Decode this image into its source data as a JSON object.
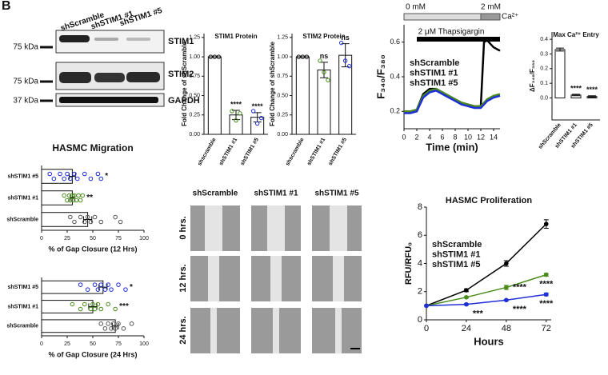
{
  "panel_label": "B",
  "blot": {
    "lanes": [
      "shScramble",
      "shSTIM1 #1",
      "shSTIM1 #5"
    ],
    "markers": [
      "75 kDa",
      "75 kDa",
      "37 kDa"
    ],
    "proteins": [
      "STIM1",
      "STIM2",
      "GAPDH"
    ]
  },
  "images": {
    "columns": [
      "shScramble",
      "shSTIM1 #1",
      "shSTIM1 #5"
    ],
    "rows": [
      "0 hrs.",
      "12 hrs.",
      "24 hrs."
    ]
  },
  "chart_data": [
    {
      "type": "bar",
      "title": "STIM1 Protein",
      "ylabel": "Fold Change of shScramble",
      "categories": [
        "shscramble",
        "shSTIM1 #1",
        "shSTIM1 #5"
      ],
      "values": [
        1,
        0.25,
        0.22
      ],
      "errors": [
        0,
        0.06,
        0.06
      ],
      "points": [
        [
          1,
          1,
          1
        ],
        [
          0.3,
          0.18,
          0.27
        ],
        [
          0.3,
          0.14,
          0.21
        ]
      ],
      "colors": [
        "#000000",
        "#4a8c1c",
        "#1f2fd6"
      ],
      "annotations": [
        null,
        "****",
        "****"
      ],
      "ylim": [
        0,
        1.3
      ],
      "yticks": [
        {
          "value": 0,
          "label": "0.00"
        },
        {
          "value": 0.25,
          "label": "0.25"
        },
        {
          "value": 0.5,
          "label": "0.50"
        },
        {
          "value": 0.75,
          "label": "0.75"
        },
        {
          "value": 1,
          "label": "1.00"
        },
        {
          "value": 1.25,
          "label": "1.25"
        }
      ]
    },
    {
      "type": "bar",
      "title": "STIM2 Protein",
      "ylabel": "Fold Change of shScramble",
      "categories": [
        "shscramble",
        "shSTIM1 #1",
        "shSTIM1 #5"
      ],
      "values": [
        1,
        0.83,
        1.02
      ],
      "errors": [
        0,
        0.1,
        0.15
      ],
      "points": [
        [
          1,
          1,
          1
        ],
        [
          0.95,
          0.8,
          0.7
        ],
        [
          1.18,
          0.95,
          0.88
        ]
      ],
      "colors": [
        "#000000",
        "#4a8c1c",
        "#1f2fd6"
      ],
      "annotations": [
        null,
        "ns",
        "ns"
      ],
      "ylim": [
        0,
        1.3
      ],
      "yticks": [
        {
          "value": 0,
          "label": "0.00"
        },
        {
          "value": 0.25,
          "label": "0.25"
        },
        {
          "value": 0.5,
          "label": "0.50"
        },
        {
          "value": 0.75,
          "label": "0.75"
        },
        {
          "value": 1,
          "label": "1.00"
        },
        {
          "value": 1.25,
          "label": "1.25"
        }
      ]
    },
    {
      "type": "line",
      "xlabel": "Time (min)",
      "ylabel": "F₃₄₀/F₃₈₀",
      "legend": "upper left",
      "protocol": {
        "before": "0 mM",
        "after": "2 mM",
        "ion": "Ca²⁺",
        "drug": "2 μM Thapsigargin"
      },
      "x": [
        0,
        1,
        2,
        3,
        4,
        5,
        6,
        7,
        8,
        9,
        10,
        11,
        12,
        12.5,
        13,
        14,
        15
      ],
      "series": [
        {
          "name": "shScramble",
          "color": "#000000",
          "values": [
            0.2,
            0.2,
            0.21,
            0.3,
            0.33,
            0.33,
            0.31,
            0.29,
            0.27,
            0.25,
            0.24,
            0.23,
            0.23,
            0.6,
            0.61,
            0.57,
            0.55
          ]
        },
        {
          "name": "shSTIM1 #1",
          "color": "#4a8c1c",
          "values": [
            0.2,
            0.2,
            0.21,
            0.29,
            0.32,
            0.33,
            0.31,
            0.29,
            0.27,
            0.25,
            0.24,
            0.23,
            0.23,
            0.25,
            0.27,
            0.29,
            0.3
          ]
        },
        {
          "name": "shSTIM1 #5",
          "color": "#1f2fd6",
          "values": [
            0.19,
            0.19,
            0.2,
            0.28,
            0.31,
            0.32,
            0.3,
            0.28,
            0.26,
            0.24,
            0.23,
            0.22,
            0.22,
            0.24,
            0.26,
            0.28,
            0.29
          ]
        }
      ],
      "xlim": [
        0,
        15
      ],
      "ylim": [
        0.1,
        0.7
      ],
      "xticks": [
        0,
        2,
        4,
        6,
        8,
        10,
        12,
        14
      ],
      "yticks": [
        0.2,
        0.4,
        0.6
      ]
    },
    {
      "type": "bar",
      "title": "Max Ca²⁺ Entry",
      "ylabel": "ΔF₃₄₀/F₃₈₀",
      "categories": [
        "shScramble",
        "shSTIM1 #1",
        "shSTIM1 #5"
      ],
      "values": [
        0.33,
        0.02,
        0.01
      ],
      "errors": [
        0.01,
        0.005,
        0.005
      ],
      "colors": [
        "#000000",
        "#4a8c1c",
        "#1f2fd6"
      ],
      "annotations": [
        null,
        "****",
        "****"
      ],
      "ylim": [
        -0.15,
        0.45
      ],
      "yticks": [
        {
          "value": 0,
          "label": "0.0"
        },
        {
          "value": 0.1,
          "label": "0.1"
        },
        {
          "value": 0.2,
          "label": "0.2"
        },
        {
          "value": 0.3,
          "label": "0.3"
        },
        {
          "value": 0.4,
          "label": "0.4"
        }
      ]
    },
    {
      "type": "barh",
      "title": "HASMC Migration",
      "xlabel": "% of Gap Closure (12 Hrs)",
      "categories": [
        "shSTIM1 #5",
        "shSTIM1 #1",
        "shScramble"
      ],
      "values": [
        30,
        30,
        45
      ],
      "errors": [
        3,
        2,
        4
      ],
      "colors": [
        "#1f2fd6",
        "#4a8c1c",
        "#555555"
      ],
      "annotations": [
        "*",
        "**",
        null
      ],
      "points": [
        [
          8,
          12,
          18,
          22,
          25,
          28,
          32,
          35,
          42,
          48,
          55,
          58
        ],
        [
          22,
          25,
          27,
          28,
          30,
          31,
          32,
          34,
          36,
          38,
          40
        ],
        [
          28,
          32,
          38,
          42,
          45,
          48,
          52,
          58,
          72,
          77
        ]
      ],
      "xlim": [
        0,
        100
      ],
      "xticks": [
        0,
        25,
        50,
        75,
        100
      ]
    },
    {
      "type": "barh",
      "xlabel": "% of Gap Closure (24 Hrs)",
      "categories": [
        "shSTIM1 #5",
        "shSTIM1 #1",
        "shScramble"
      ],
      "values": [
        60,
        50,
        72
      ],
      "errors": [
        4,
        4,
        3
      ],
      "colors": [
        "#1f2fd6",
        "#4a8c1c",
        "#555555"
      ],
      "annotations": [
        "*",
        "***",
        null
      ],
      "points": [
        [
          38,
          45,
          52,
          55,
          58,
          62,
          65,
          68,
          75,
          82
        ],
        [
          30,
          38,
          42,
          48,
          50,
          52,
          55,
          58,
          65,
          72
        ],
        [
          58,
          62,
          65,
          68,
          70,
          72,
          75,
          80,
          88
        ]
      ],
      "xlim": [
        0,
        100
      ],
      "xticks": [
        0,
        25,
        50,
        75,
        100
      ]
    },
    {
      "type": "line",
      "title": "HASMC Proliferation",
      "xlabel": "Hours",
      "ylabel": "RFU/RFU₀",
      "legend": "upper left",
      "markers": true,
      "x": [
        0,
        24,
        48,
        72
      ],
      "series": [
        {
          "name": "shScramble",
          "color": "#000000",
          "values": [
            1,
            2.1,
            4,
            6.8
          ],
          "errors": [
            0,
            0.1,
            0.2,
            0.3
          ],
          "annotations": [
            null,
            null,
            null,
            null
          ]
        },
        {
          "name": "shSTIM1 #1",
          "color": "#4a8c1c",
          "values": [
            1,
            1.6,
            2.3,
            3.2
          ],
          "errors": [
            0,
            0.05,
            0.15,
            0.1
          ],
          "annotations": [
            null,
            null,
            "****",
            "****"
          ]
        },
        {
          "name": "shSTIM1 #5",
          "color": "#1f2fd6",
          "values": [
            1,
            1.1,
            1.4,
            1.8
          ],
          "errors": [
            0,
            0.05,
            0.05,
            0.1
          ],
          "annotations": [
            null,
            "***",
            "****",
            "****"
          ]
        }
      ],
      "xlim": [
        0,
        75
      ],
      "ylim": [
        0,
        8
      ],
      "xticks": [
        0,
        24,
        48,
        72
      ],
      "yticks": [
        0,
        2,
        4,
        6,
        8
      ]
    }
  ]
}
